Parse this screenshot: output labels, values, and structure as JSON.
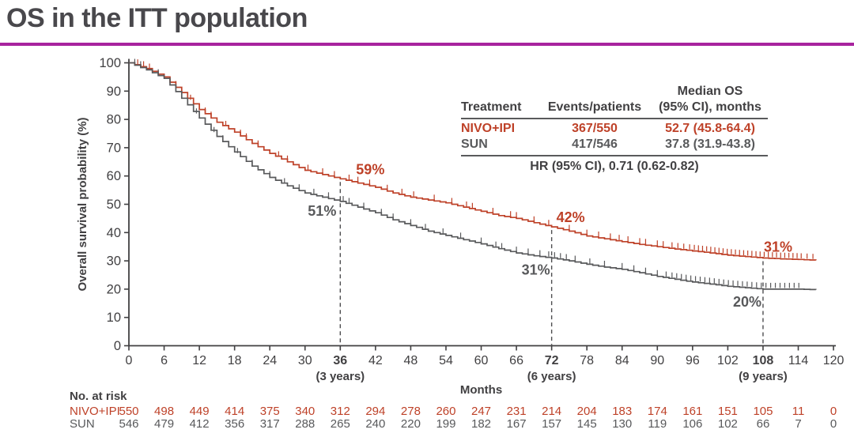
{
  "page": {
    "title": "OS in the ITT population",
    "accent_color": "#a8239e",
    "text_color": "#414042"
  },
  "chart_data": {
    "type": "line",
    "subtype": "kaplan-meier-step",
    "title": "OS in the ITT population",
    "xlabel": "Months",
    "ylabel": "Overall survival probability (%)",
    "xlim": [
      0,
      120
    ],
    "ylim": [
      0,
      100
    ],
    "xticks": [
      0,
      6,
      12,
      18,
      24,
      30,
      36,
      42,
      48,
      54,
      60,
      66,
      72,
      78,
      84,
      90,
      96,
      102,
      108,
      114,
      120
    ],
    "yticks": [
      0,
      10,
      20,
      30,
      40,
      50,
      60,
      70,
      80,
      90,
      100
    ],
    "bold_xticks": [
      36,
      72,
      108
    ],
    "xtick_sublabels": {
      "36": "(3 years)",
      "72": "(6 years)",
      "108": "(9 years)"
    },
    "dashed_lines_x": [
      36,
      72,
      108
    ],
    "grid": false,
    "text_color": "#414042",
    "series": [
      {
        "name": "NIVO+IPI",
        "color": "#be4128",
        "x": [
          0,
          3,
          6,
          9,
          12,
          15,
          18,
          21,
          24,
          27,
          30,
          33,
          36,
          39,
          42,
          45,
          48,
          51,
          54,
          57,
          60,
          63,
          66,
          69,
          72,
          75,
          78,
          81,
          84,
          87,
          90,
          93,
          96,
          99,
          102,
          105,
          108,
          111,
          114,
          117
        ],
        "y": [
          100,
          98,
          95,
          89.5,
          83.5,
          79,
          75.5,
          71.5,
          68,
          65,
          62,
          60.5,
          59,
          57.5,
          56,
          54,
          52.5,
          51.5,
          50.5,
          49,
          47.5,
          46,
          45,
          43.5,
          42,
          40.5,
          38.8,
          37.8,
          36.8,
          35.8,
          35,
          34.2,
          33.5,
          32.8,
          32,
          31.5,
          31,
          30.7,
          30.5,
          30.2
        ],
        "censor_x": [
          1.5,
          2.5,
          3.5,
          8,
          10.5,
          13,
          14,
          16.5,
          19,
          20,
          22,
          25.5,
          27,
          30.5,
          33,
          35,
          37.5,
          39,
          41,
          44,
          46.5,
          48.5,
          52,
          55,
          57.5,
          58.5,
          62,
          65,
          66,
          69,
          71.5,
          75,
          78,
          80,
          82,
          83.5,
          85,
          87,
          88,
          90,
          91,
          92.5,
          93.5,
          94.5,
          95.5,
          96.3,
          97,
          97.7,
          98.4,
          99.1,
          99.8,
          100.5,
          101.2,
          101.9,
          102.6,
          103.3,
          104,
          104.7,
          105.4,
          106.1,
          106.8,
          107.5,
          108.2,
          108.9,
          109.6,
          110.3,
          111,
          111.7,
          112.4,
          113.1,
          113.8,
          114.5,
          115.5,
          116.5
        ],
        "annotations": [
          {
            "x": 36,
            "y": 59,
            "label": "59%",
            "dx": 38,
            "dy": -6
          },
          {
            "x": 72,
            "y": 42,
            "label": "42%",
            "dx": 24,
            "dy": -6
          },
          {
            "x": 108,
            "y": 31,
            "label": "31%",
            "dx": 19,
            "dy": -8
          }
        ]
      },
      {
        "name": "SUN",
        "color": "#58595b",
        "x": [
          0,
          3,
          6,
          9,
          12,
          15,
          18,
          21,
          24,
          27,
          30,
          33,
          36,
          39,
          42,
          45,
          48,
          51,
          54,
          57,
          60,
          63,
          66,
          69,
          72,
          75,
          78,
          81,
          84,
          87,
          90,
          93,
          96,
          99,
          102,
          105,
          108,
          111,
          114,
          117
        ],
        "y": [
          100,
          97.5,
          94.5,
          87.5,
          80.5,
          74,
          68.5,
          63.5,
          59.5,
          56.5,
          54,
          52.5,
          51,
          49,
          47,
          44.5,
          42.5,
          40.5,
          39,
          37.5,
          36,
          34.3,
          32.8,
          31.8,
          31,
          30,
          28.8,
          27.8,
          27,
          25.8,
          24.5,
          23.5,
          22.5,
          21.8,
          21,
          20.5,
          20,
          20,
          20,
          19.8
        ],
        "censor_x": [
          1,
          2,
          5,
          9,
          11.5,
          14.5,
          16,
          18.5,
          21,
          24,
          26.5,
          29,
          31.5,
          34,
          36.5,
          37.5,
          40,
          43,
          45,
          48,
          50.5,
          53.5,
          56.5,
          60,
          62.5,
          63.5,
          66,
          68,
          70,
          71.5,
          72.5,
          73.5,
          74.5,
          76,
          78.5,
          81,
          84,
          86,
          88,
          90,
          91.5,
          92.5,
          93.3,
          94.1,
          94.9,
          95.7,
          96.5,
          97.3,
          98.1,
          98.9,
          99.7,
          100.5,
          101.3,
          102.1,
          102.9,
          103.7,
          104.5,
          105.3,
          106.1,
          106.9,
          107.7,
          108.5,
          109.3,
          110.1,
          110.9,
          111.7,
          112.5,
          113.3,
          114.1
        ],
        "annotations": [
          {
            "x": 36,
            "y": 51,
            "label": "51%",
            "dx": -23,
            "dy": 18
          },
          {
            "x": 72,
            "y": 31,
            "label": "31%",
            "dx": -20,
            "dy": 21
          },
          {
            "x": 108,
            "y": 20,
            "label": "20%",
            "dx": -20,
            "dy": 22
          }
        ]
      }
    ]
  },
  "stats_table": {
    "header_treatment": "Treatment",
    "header_events": "Events/patients",
    "header_median_top": "Median OS",
    "header_median_bottom": "(95% CI), months",
    "rows": [
      {
        "treatment": "NIVO+IPI",
        "events": "367/550",
        "median": "52.7 (45.8-64.4)",
        "color": "#be4128"
      },
      {
        "treatment": "SUN",
        "events": "417/546",
        "median": "37.8 (31.9-43.8)",
        "color": "#58595b"
      }
    ],
    "footer": "HR (95% CI), 0.71 (0.62-0.82)"
  },
  "at_risk": {
    "label": "No. at risk",
    "rows": [
      {
        "name": "NIVO+IPI",
        "color": "#be4128",
        "values": [
          550,
          498,
          449,
          414,
          375,
          340,
          312,
          294,
          278,
          260,
          247,
          231,
          214,
          204,
          183,
          174,
          161,
          151,
          105,
          11,
          0
        ]
      },
      {
        "name": "SUN",
        "color": "#58595b",
        "values": [
          546,
          479,
          412,
          356,
          317,
          288,
          265,
          240,
          220,
          199,
          182,
          167,
          157,
          145,
          130,
          119,
          106,
          102,
          66,
          7,
          0
        ]
      }
    ]
  }
}
